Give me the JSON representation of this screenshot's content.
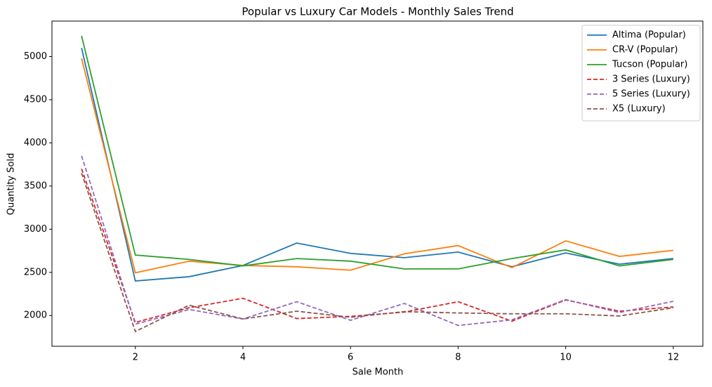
{
  "chart_data": {
    "type": "line",
    "title": "Popular vs Luxury Car Models - Monthly Sales Trend",
    "x_label": "Sale Month",
    "y_label": "Quantity Sold",
    "x": [
      1,
      2,
      3,
      4,
      5,
      6,
      7,
      8,
      9,
      10,
      11,
      12
    ],
    "series": [
      {
        "name": "Altima (Popular)",
        "color": "#1f77b4",
        "linestyle": "solid",
        "values": [
          5100,
          2400,
          2450,
          2580,
          2840,
          2720,
          2670,
          2735,
          2565,
          2725,
          2595,
          2660
        ]
      },
      {
        "name": "CR-V (Popular)",
        "color": "#ff7f0e",
        "linestyle": "solid",
        "values": [
          4980,
          2495,
          2630,
          2580,
          2565,
          2525,
          2715,
          2810,
          2555,
          2865,
          2685,
          2755
        ]
      },
      {
        "name": "Tucson (Popular)",
        "color": "#2ca02c",
        "linestyle": "solid",
        "values": [
          5240,
          2700,
          2650,
          2575,
          2660,
          2630,
          2540,
          2540,
          2660,
          2760,
          2575,
          2650
        ]
      },
      {
        "name": "3 Series (Luxury)",
        "color": "#d62728",
        "linestyle": "dashed",
        "values": [
          3700,
          1920,
          2090,
          2200,
          1965,
          1990,
          2040,
          2160,
          1935,
          2180,
          2050,
          2100
        ]
      },
      {
        "name": "5 Series (Luxury)",
        "color": "#9467bd",
        "linestyle": "dashed",
        "values": [
          3850,
          1900,
          2070,
          1960,
          2160,
          1945,
          2140,
          1885,
          1950,
          2185,
          2035,
          2165
        ]
      },
      {
        "name": "X5 (Luxury)",
        "color": "#8c564b",
        "linestyle": "dashed",
        "values": [
          3650,
          1815,
          2120,
          1960,
          2050,
          1980,
          2045,
          2030,
          2020,
          2020,
          1995,
          2090
        ]
      }
    ],
    "xlim": [
      0.45,
      12.55
    ],
    "xticks": [
      2,
      4,
      6,
      8,
      10,
      12
    ],
    "ylim": [
      1644,
      5411
    ],
    "yticks": [
      2000,
      2500,
      3000,
      3500,
      4000,
      4500,
      5000
    ],
    "legend": "upper right",
    "grid": false
  }
}
